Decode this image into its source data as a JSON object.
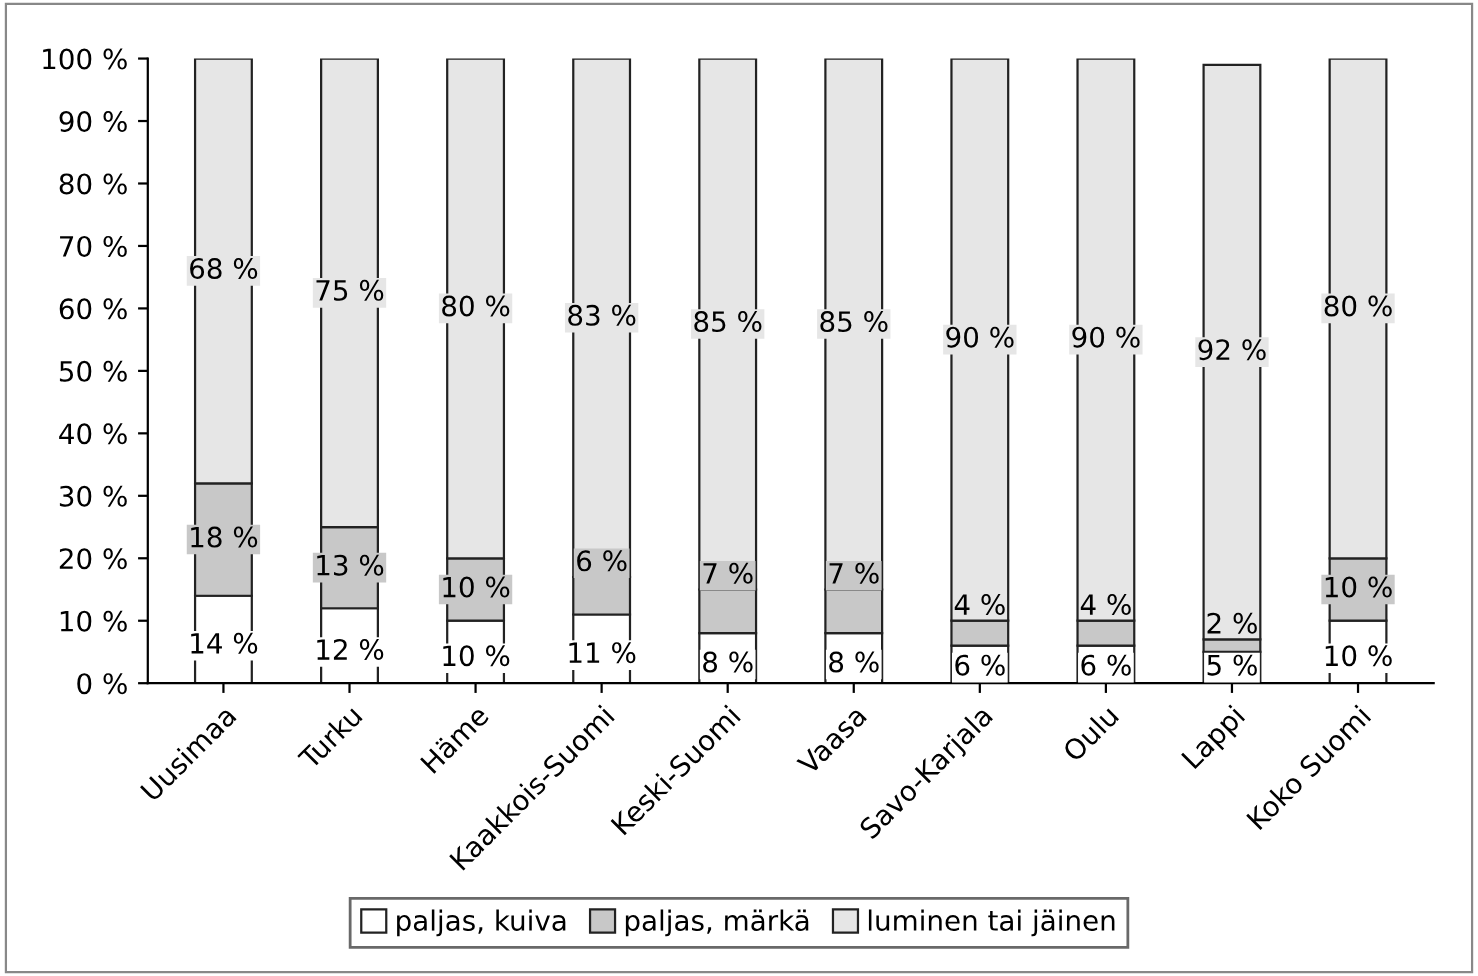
{
  "chart_data": {
    "type": "bar",
    "stacked": true,
    "categories": [
      "Uusimaa",
      "Turku",
      "Häme",
      "Kaakkois-Suomi",
      "Keski-Suomi",
      "Vaasa",
      "Savo-Karjala",
      "Oulu",
      "Lappi",
      "Koko Suomi"
    ],
    "series": [
      {
        "name": "paljas, kuiva",
        "color": "#ffffff",
        "values": [
          14,
          12,
          10,
          11,
          8,
          8,
          6,
          6,
          5,
          10
        ],
        "value_labels": [
          "14 %",
          "12 %",
          "10 %",
          "11 %",
          "8 %",
          "8 %",
          "6 %",
          "6 %",
          "5 %",
          "10 %"
        ]
      },
      {
        "name": "paljas, märkä",
        "color": "#c8c8c8",
        "values": [
          18,
          13,
          10,
          6,
          7,
          7,
          4,
          4,
          2,
          10
        ],
        "value_labels": [
          "18 %",
          "13 %",
          "10 %",
          "6 %",
          "7 %",
          "7 %",
          "4 %",
          "4 %",
          "2 %",
          "10 %"
        ]
      },
      {
        "name": "luminen tai jäinen",
        "color": "#e6e6e6",
        "values": [
          68,
          75,
          80,
          83,
          85,
          85,
          90,
          90,
          92,
          80
        ],
        "value_labels": [
          "68 %",
          "75 %",
          "80 %",
          "83 %",
          "85 %",
          "85 %",
          "90 %",
          "90 %",
          "92 %",
          "80 %"
        ]
      }
    ],
    "ylim": [
      0,
      100
    ],
    "yticks": [
      {
        "value": 0,
        "label": "0 %"
      },
      {
        "value": 10,
        "label": "10 %"
      },
      {
        "value": 20,
        "label": "20 %"
      },
      {
        "value": 30,
        "label": "30 %"
      },
      {
        "value": 40,
        "label": "40 %"
      },
      {
        "value": 50,
        "label": "50 %"
      },
      {
        "value": 60,
        "label": "60 %"
      },
      {
        "value": 70,
        "label": "70 %"
      },
      {
        "value": 80,
        "label": "80 %"
      },
      {
        "value": 90,
        "label": "90 %"
      },
      {
        "value": 100,
        "label": "100 %"
      }
    ],
    "grid": false,
    "legend": "bottom"
  }
}
